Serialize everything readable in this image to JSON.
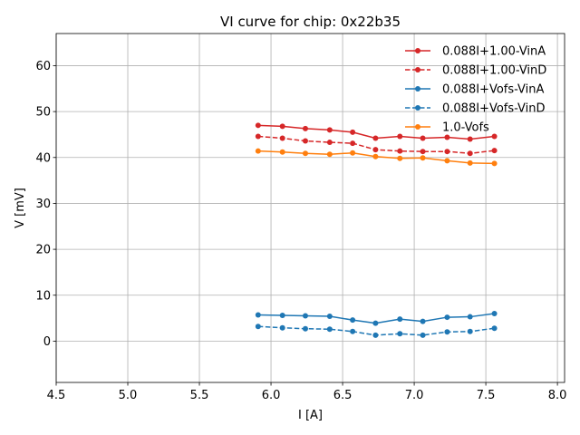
{
  "chart_data": {
    "type": "line",
    "title": "VI curve for chip: 0x22b35",
    "xlabel": "I [A]",
    "ylabel": "V [mV]",
    "xlim": [
      4.5,
      8.05
    ],
    "ylim": [
      -9,
      67
    ],
    "xticks": [
      4.5,
      5.0,
      5.5,
      6.0,
      6.5,
      7.0,
      7.5,
      8.0
    ],
    "xtick_labels": [
      "4.5",
      "5.0",
      "5.5",
      "6.0",
      "6.5",
      "7.0",
      "7.5",
      "8.0"
    ],
    "yticks": [
      0,
      10,
      20,
      30,
      40,
      50,
      60
    ],
    "ytick_labels": [
      "0",
      "10",
      "20",
      "30",
      "40",
      "50",
      "60"
    ],
    "grid": true,
    "legend_position": "top-right",
    "x": [
      5.91,
      6.08,
      6.24,
      6.41,
      6.57,
      6.73,
      6.9,
      7.06,
      7.23,
      7.39,
      7.56
    ],
    "series": [
      {
        "name": "0.088I+1.00-VinA",
        "color": "#d62728",
        "linestyle": "solid",
        "values": [
          47.0,
          46.8,
          46.3,
          46.0,
          45.5,
          44.2,
          44.6,
          44.2,
          44.4,
          44.0,
          44.6
        ]
      },
      {
        "name": "0.088I+1.00-VinD",
        "color": "#d62728",
        "linestyle": "dashed",
        "values": [
          44.6,
          44.2,
          43.6,
          43.3,
          43.1,
          41.7,
          41.4,
          41.3,
          41.3,
          40.9,
          41.5
        ]
      },
      {
        "name": "0.088I+Vofs-VinA",
        "color": "#1f77b4",
        "linestyle": "solid",
        "values": [
          5.7,
          5.6,
          5.5,
          5.4,
          4.6,
          3.9,
          4.8,
          4.3,
          5.2,
          5.3,
          6.0
        ]
      },
      {
        "name": "0.088I+Vofs-VinD",
        "color": "#1f77b4",
        "linestyle": "dashed",
        "values": [
          3.2,
          2.9,
          2.7,
          2.6,
          2.1,
          1.3,
          1.6,
          1.3,
          2.0,
          2.1,
          2.8
        ]
      },
      {
        "name": "1.0-Vofs",
        "color": "#ff7f0e",
        "linestyle": "solid",
        "values": [
          41.4,
          41.2,
          40.9,
          40.7,
          41.0,
          40.2,
          39.8,
          39.9,
          39.3,
          38.8,
          38.7
        ]
      }
    ]
  }
}
